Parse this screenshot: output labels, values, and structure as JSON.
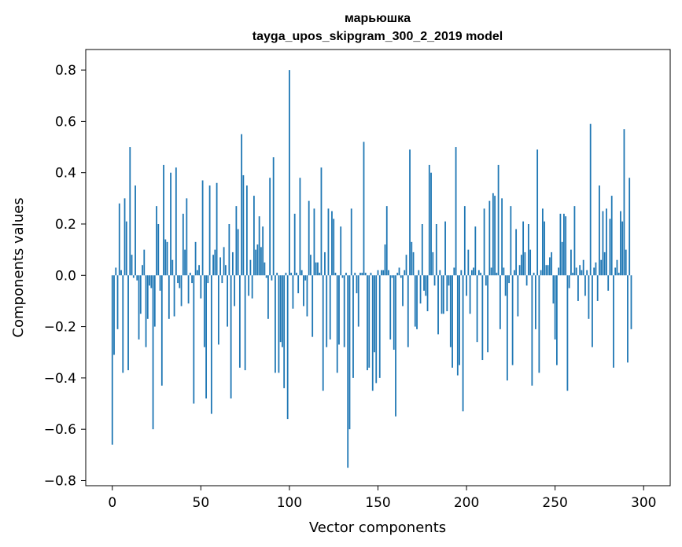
{
  "chart_data": {
    "type": "bar",
    "title": "марьюшка",
    "subtitle": "tayga_upos_skipgram_300_2_2019 model",
    "xlabel": "Vector components",
    "ylabel": "Components values",
    "xlim": [
      -15,
      315
    ],
    "ylim": [
      -0.82,
      0.88
    ],
    "xticks": [
      0,
      50,
      100,
      150,
      200,
      250,
      300
    ],
    "xtick_labels": [
      "0",
      "50",
      "100",
      "150",
      "200",
      "250",
      "300"
    ],
    "yticks": [
      -0.8,
      -0.6,
      -0.4,
      -0.2,
      0.0,
      0.2,
      0.4,
      0.6,
      0.8
    ],
    "ytick_labels": [
      "−0.8",
      "−0.6",
      "−0.4",
      "−0.2",
      "0.0",
      "0.2",
      "0.4",
      "0.6",
      "0.8"
    ],
    "bar_color": "#1f77b4",
    "grid": false,
    "values": [
      -0.66,
      -0.31,
      0.03,
      -0.21,
      0.28,
      0.02,
      -0.38,
      0.3,
      0.21,
      -0.37,
      0.5,
      0.08,
      -0.01,
      0.35,
      -0.02,
      -0.25,
      -0.15,
      0.04,
      0.1,
      -0.28,
      -0.17,
      -0.04,
      -0.05,
      -0.6,
      -0.2,
      0.27,
      0.2,
      -0.06,
      -0.43,
      0.43,
      0.14,
      0.13,
      -0.17,
      0.4,
      0.06,
      -0.16,
      0.42,
      -0.03,
      -0.05,
      -0.12,
      0.24,
      0.1,
      0.3,
      -0.11,
      0.01,
      -0.03,
      -0.5,
      0.13,
      0.02,
      0.04,
      -0.09,
      0.37,
      -0.28,
      -0.48,
      -0.03,
      0.35,
      -0.54,
      0.08,
      0.1,
      0.36,
      -0.27,
      0.07,
      -0.03,
      0.11,
      0.04,
      -0.2,
      0.2,
      -0.48,
      0.09,
      -0.12,
      0.27,
      0.18,
      -0.36,
      0.55,
      0.39,
      -0.37,
      0.35,
      -0.08,
      0.06,
      -0.09,
      0.31,
      0.1,
      0.12,
      0.23,
      0.11,
      0.19,
      0.05,
      -0.01,
      -0.17,
      0.38,
      -0.02,
      0.46,
      -0.38,
      0.01,
      -0.38,
      -0.26,
      -0.28,
      -0.44,
      0.01,
      -0.56,
      0.8,
      0.01,
      -0.13,
      0.24,
      0.01,
      -0.07,
      0.38,
      0.02,
      -0.12,
      -0.02,
      -0.16,
      0.29,
      0.08,
      -0.24,
      0.26,
      0.05,
      0.05,
      0.01,
      0.42,
      -0.45,
      0.09,
      -0.28,
      0.26,
      -0.25,
      0.25,
      0.22,
      0.01,
      -0.38,
      -0.27,
      0.19,
      -0.01,
      -0.28,
      0.01,
      -0.75,
      -0.6,
      0.26,
      -0.4,
      0.01,
      -0.07,
      -0.2,
      0.01,
      0.01,
      0.52,
      0.01,
      -0.37,
      -0.36,
      0.01,
      -0.45,
      -0.3,
      -0.42,
      0.02,
      -0.4,
      0.02,
      0.02,
      0.12,
      0.27,
      0.02,
      -0.25,
      -0.01,
      -0.29,
      -0.55,
      0.01,
      0.03,
      -0.01,
      -0.12,
      0.02,
      0.08,
      -0.28,
      0.49,
      0.13,
      0.09,
      -0.2,
      -0.21,
      0.02,
      -0.11,
      0.2,
      -0.06,
      -0.08,
      -0.14,
      0.43,
      0.4,
      0.09,
      -0.04,
      0.2,
      -0.23,
      0.02,
      -0.15,
      -0.15,
      0.21,
      -0.14,
      -0.04,
      -0.28,
      -0.36,
      0.03,
      0.5,
      -0.39,
      -0.35,
      0.02,
      -0.53,
      0.27,
      -0.08,
      0.1,
      -0.15,
      0.02,
      0.03,
      0.19,
      -0.26,
      0.02,
      0.01,
      -0.33,
      0.26,
      -0.04,
      -0.3,
      0.29,
      0.03,
      0.32,
      0.31,
      0.01,
      0.43,
      -0.21,
      0.3,
      0.03,
      -0.08,
      -0.41,
      -0.03,
      0.27,
      -0.35,
      0.02,
      0.18,
      -0.16,
      0.04,
      0.08,
      0.21,
      0.09,
      -0.04,
      0.2,
      0.1,
      -0.43,
      0.01,
      -0.21,
      0.49,
      -0.38,
      0.02,
      0.26,
      0.21,
      0.04,
      0.04,
      0.07,
      0.09,
      -0.11,
      -0.25,
      -0.35,
      0.03,
      0.24,
      0.13,
      0.24,
      0.23,
      -0.45,
      -0.05,
      0.1,
      0.01,
      0.27,
      0.03,
      -0.1,
      0.04,
      0.02,
      0.06,
      -0.08,
      0.02,
      -0.17,
      0.59,
      -0.28,
      0.03,
      0.05,
      -0.1,
      0.35,
      0.06,
      0.25,
      0.09,
      0.26,
      -0.06,
      0.22,
      0.31,
      -0.36,
      0.03,
      0.06,
      0.01,
      0.25,
      0.21,
      0.57,
      0.1,
      -0.34,
      0.38,
      -0.21
    ]
  }
}
